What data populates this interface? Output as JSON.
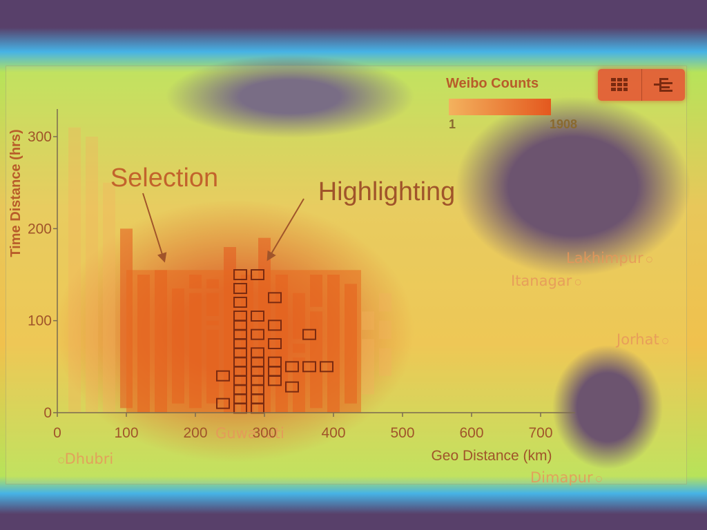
{
  "legend": {
    "title": "Weibo Counts",
    "min": "1",
    "max": "1908"
  },
  "toolbar": {
    "buttons": [
      {
        "icon": "grid-view-icon"
      },
      {
        "icon": "tree-layout-icon"
      }
    ]
  },
  "map_labels": [
    "Lakhimpur",
    "Itanagar",
    "Jorhat",
    "Dhubri",
    "Guwahati",
    "Dimapur"
  ],
  "annotations": {
    "selection": "Selection",
    "highlighting": "Highlighting"
  },
  "chart_data": {
    "type": "heatmap",
    "title": "",
    "xlabel": "Geo Distance (km)",
    "ylabel": "Time Distance (hrs)",
    "xlim": [
      0,
      750
    ],
    "ylim": [
      0,
      330
    ],
    "x_ticks": [
      "0",
      "100",
      "200",
      "300",
      "400",
      "500",
      "600",
      "700"
    ],
    "y_ticks": [
      "0",
      "100",
      "200",
      "300"
    ],
    "grid": false,
    "legend_position": "top-right",
    "colors": {
      "low": "#f3b25e",
      "high": "#e4581e",
      "highlight": "#7a2a10",
      "selection": "#e8691f"
    },
    "selection": {
      "x": [
        100,
        440
      ],
      "y": [
        0,
        155
      ]
    },
    "columns": [
      {
        "x": 25,
        "segments": [
          [
            0,
            310
          ]
        ]
      },
      {
        "x": 50,
        "segments": [
          [
            0,
            300
          ]
        ]
      },
      {
        "x": 75,
        "segments": [
          [
            0,
            250
          ]
        ]
      },
      {
        "x": 100,
        "segments": [
          [
            5,
            200
          ]
        ]
      },
      {
        "x": 125,
        "segments": [
          [
            0,
            150
          ]
        ]
      },
      {
        "x": 150,
        "segments": [
          [
            0,
            155
          ]
        ]
      },
      {
        "x": 175,
        "segments": [
          [
            10,
            135
          ]
        ]
      },
      {
        "x": 200,
        "segments": [
          [
            5,
            130
          ],
          [
            135,
            150
          ]
        ]
      },
      {
        "x": 225,
        "segments": [
          [
            10,
            90
          ],
          [
            95,
            100
          ],
          [
            105,
            130
          ],
          [
            135,
            145
          ]
        ]
      },
      {
        "x": 250,
        "segments": [
          [
            0,
            180
          ]
        ]
      },
      {
        "x": 275,
        "segments": [
          [
            0,
            150
          ]
        ]
      },
      {
        "x": 300,
        "segments": [
          [
            0,
            190
          ]
        ]
      },
      {
        "x": 325,
        "segments": [
          [
            0,
            150
          ]
        ]
      },
      {
        "x": 350,
        "segments": [
          [
            0,
            60
          ],
          [
            65,
            75
          ],
          [
            80,
            130
          ]
        ]
      },
      {
        "x": 375,
        "segments": [
          [
            5,
            110
          ],
          [
            115,
            150
          ]
        ]
      },
      {
        "x": 400,
        "segments": [
          [
            0,
            150
          ]
        ]
      },
      {
        "x": 425,
        "segments": [
          [
            10,
            140
          ]
        ]
      },
      {
        "x": 450,
        "segments": [
          [
            20,
            80
          ],
          [
            90,
            110
          ]
        ]
      },
      {
        "x": 475,
        "segments": [
          [
            40,
            70
          ],
          [
            80,
            100
          ],
          [
            110,
            130
          ]
        ]
      }
    ],
    "highlighted_cells": [
      {
        "x": 240,
        "y": 40
      },
      {
        "x": 240,
        "y": 10
      },
      {
        "x": 265,
        "y": 150
      },
      {
        "x": 265,
        "y": 135
      },
      {
        "x": 265,
        "y": 120
      },
      {
        "x": 265,
        "y": 105
      },
      {
        "x": 265,
        "y": 95
      },
      {
        "x": 265,
        "y": 85
      },
      {
        "x": 265,
        "y": 75
      },
      {
        "x": 265,
        "y": 65
      },
      {
        "x": 265,
        "y": 55
      },
      {
        "x": 265,
        "y": 45
      },
      {
        "x": 265,
        "y": 35
      },
      {
        "x": 265,
        "y": 25
      },
      {
        "x": 265,
        "y": 15
      },
      {
        "x": 265,
        "y": 5
      },
      {
        "x": 290,
        "y": 150
      },
      {
        "x": 290,
        "y": 105
      },
      {
        "x": 290,
        "y": 85
      },
      {
        "x": 290,
        "y": 65
      },
      {
        "x": 290,
        "y": 55
      },
      {
        "x": 290,
        "y": 45
      },
      {
        "x": 290,
        "y": 35
      },
      {
        "x": 290,
        "y": 25
      },
      {
        "x": 290,
        "y": 15
      },
      {
        "x": 290,
        "y": 5
      },
      {
        "x": 315,
        "y": 125
      },
      {
        "x": 315,
        "y": 95
      },
      {
        "x": 315,
        "y": 75
      },
      {
        "x": 315,
        "y": 55
      },
      {
        "x": 315,
        "y": 45
      },
      {
        "x": 315,
        "y": 35
      },
      {
        "x": 340,
        "y": 50
      },
      {
        "x": 340,
        "y": 28
      },
      {
        "x": 365,
        "y": 85
      },
      {
        "x": 365,
        "y": 50
      },
      {
        "x": 390,
        "y": 50
      }
    ]
  }
}
